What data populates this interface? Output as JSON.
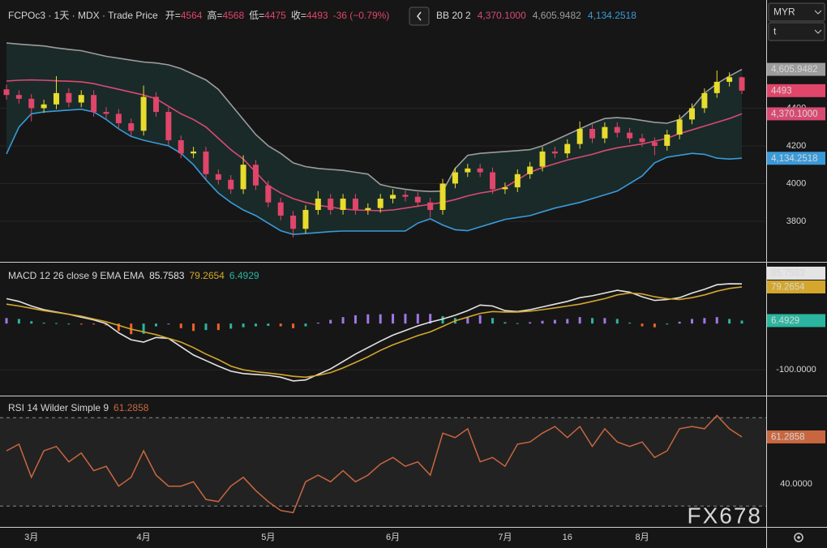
{
  "header": {
    "stats_labels": [
      "开=",
      "高=",
      "低=",
      "收="
    ],
    "change": "-36 (−0.79%)"
  },
  "selects": {
    "currency": "MYR",
    "interval": "t"
  },
  "watermark": "FX678",
  "chart_data": [
    {
      "type": "candlestick",
      "title": "FCPOc3 · 1天 · MDX · Trade Price",
      "categories": [
        null,
        null,
        "3月",
        null,
        null,
        null,
        null,
        null,
        null,
        null,
        null,
        "4月",
        null,
        null,
        null,
        null,
        null,
        null,
        null,
        null,
        null,
        "5月",
        null,
        null,
        null,
        null,
        null,
        null,
        null,
        null,
        null,
        "6月",
        null,
        null,
        null,
        null,
        null,
        null,
        null,
        null,
        "7月",
        null,
        null,
        null,
        null,
        "16",
        null,
        null,
        null,
        null,
        null,
        "8月",
        null,
        null,
        null,
        null,
        null,
        null,
        null,
        null
      ],
      "open": [
        4500,
        4470,
        4450,
        4400,
        4420,
        4480,
        4430,
        4470,
        4380,
        4370,
        4320,
        4280,
        4460,
        4380,
        4230,
        4160,
        4170,
        4050,
        4020,
        3970,
        4100,
        3990,
        3900,
        3830,
        3760,
        3860,
        3920,
        3860,
        3920,
        3860,
        3870,
        3920,
        3940,
        3930,
        3900,
        3860,
        4000,
        4060,
        4080,
        4060,
        3970,
        3980,
        4050,
        4090,
        4170,
        4160,
        4210,
        4290,
        4240,
        4300,
        4270,
        4240,
        4220,
        4200,
        4260,
        4340,
        4400,
        4480,
        4540,
        4564
      ],
      "high": [
        4525,
        4495,
        4475,
        4445,
        4570,
        4505,
        4495,
        4495,
        4405,
        4395,
        4345,
        4520,
        4485,
        4405,
        4255,
        4195,
        4195,
        4075,
        4045,
        4150,
        4125,
        4015,
        3925,
        3855,
        3885,
        3960,
        3945,
        3945,
        3945,
        3895,
        3945,
        3970,
        3965,
        3955,
        3925,
        4025,
        4085,
        4105,
        4105,
        4085,
        4005,
        4075,
        4115,
        4195,
        4195,
        4235,
        4330,
        4315,
        4325,
        4325,
        4295,
        4265,
        4245,
        4285,
        4365,
        4425,
        4505,
        4600,
        4590,
        4568
      ],
      "low": [
        4445,
        4425,
        4330,
        4375,
        4395,
        4405,
        4405,
        4355,
        4345,
        4295,
        4255,
        4255,
        4355,
        4205,
        4135,
        4135,
        4025,
        3995,
        3945,
        3945,
        3965,
        3875,
        3805,
        3714,
        3735,
        3835,
        3835,
        3835,
        3835,
        3835,
        3845,
        3895,
        3905,
        3875,
        3820,
        3835,
        3975,
        4035,
        4035,
        3945,
        3945,
        3955,
        4025,
        4065,
        4135,
        4135,
        4185,
        4215,
        4215,
        4245,
        4215,
        4195,
        4150,
        4175,
        4235,
        4315,
        4375,
        4455,
        4515,
        4475
      ],
      "close": [
        4470,
        4450,
        4400,
        4420,
        4480,
        4430,
        4470,
        4380,
        4370,
        4320,
        4280,
        4460,
        4380,
        4230,
        4160,
        4170,
        4050,
        4020,
        3970,
        4100,
        3990,
        3900,
        3830,
        3760,
        3860,
        3920,
        3860,
        3920,
        3860,
        3870,
        3920,
        3940,
        3930,
        3900,
        3860,
        4000,
        4060,
        4080,
        4060,
        3970,
        3980,
        4050,
        4090,
        4170,
        4160,
        4210,
        4290,
        4240,
        4300,
        4270,
        4240,
        4220,
        4200,
        4260,
        4340,
        4400,
        4480,
        4540,
        4564,
        4493
      ],
      "up_color": "#e8dc2c",
      "down_color": "#e0456a",
      "ylim": [
        3589,
        4974
      ],
      "yticks": [
        3800,
        4000,
        4200,
        4400
      ],
      "grid": true,
      "overlay": {
        "name": "BB 20 2",
        "fill": "#1a2a29",
        "series": [
          {
            "color": "#d84a72",
            "last_label": "4,370.1000",
            "values": [
              4544,
              4548,
              4550,
              4548,
              4545,
              4543,
              4540,
              4530,
              4515,
              4500,
              4485,
              4470,
              4450,
              4410,
              4370,
              4340,
              4300,
              4240,
              4180,
              4130,
              4060,
              3990,
              3950,
              3920,
              3900,
              3885,
              3875,
              3865,
              3860,
              3858,
              3856,
              3860,
              3870,
              3880,
              3890,
              3900,
              3915,
              3935,
              3950,
              3960,
              3980,
              4020,
              4060,
              4085,
              4105,
              4125,
              4140,
              4155,
              4175,
              4190,
              4200,
              4210,
              4225,
              4240,
              4265,
              4285,
              4305,
              4325,
              4345,
              4370.1
            ]
          },
          {
            "color": "#9c9c9c",
            "last_label": "4,605.9482",
            "values": [
              4746,
              4740,
              4735,
              4730,
              4720,
              4712,
              4705,
              4690,
              4675,
              4665,
              4655,
              4645,
              4640,
              4630,
              4610,
              4580,
              4550,
              4500,
              4420,
              4340,
              4260,
              4200,
              4160,
              4110,
              4090,
              4080,
              4075,
              4070,
              4060,
              4050,
              3995,
              3980,
              3970,
              3962,
              3958,
              3960,
              4080,
              4150,
              4160,
              4165,
              4170,
              4175,
              4180,
              4200,
              4230,
              4260,
              4290,
              4320,
              4345,
              4350,
              4345,
              4335,
              4325,
              4320,
              4340,
              4400,
              4480,
              4530,
              4570,
              4605.9482
            ]
          },
          {
            "color": "#3a9ad8",
            "last_label": "4,134.2518",
            "values": [
              4157,
              4300,
              4370,
              4380,
              4385,
              4390,
              4394,
              4380,
              4340,
              4290,
              4250,
              4230,
              4215,
              4200,
              4160,
              4100,
              4020,
              3950,
              3900,
              3860,
              3830,
              3790,
              3750,
              3730,
              3735,
              3740,
              3745,
              3748,
              3748,
              3748,
              3748,
              3748,
              3748,
              3790,
              3813,
              3780,
              3755,
              3750,
              3770,
              3790,
              3810,
              3820,
              3830,
              3850,
              3870,
              3885,
              3900,
              3920,
              3940,
              3960,
              4000,
              4040,
              4110,
              4140,
              4150,
              4160,
              4155,
              4135,
              4130,
              4134.2518
            ]
          }
        ]
      }
    },
    {
      "type": "macd",
      "title": "MACD 12 26 close 9 EMA EMA",
      "ylim": [
        -154,
        130
      ],
      "yticks": [
        {
          "value": -100,
          "label": "-100.0000"
        }
      ],
      "grid": true,
      "series": [
        {
          "kind": "histogram",
          "color": "#2bb5a0",
          "rise_color": "#a277e6",
          "fall_color": "#f0602a",
          "values": [
            12,
            10,
            5,
            2,
            1,
            0,
            -2,
            -2,
            -4,
            -16,
            -23,
            -22,
            -6,
            0,
            -10,
            -16,
            -14,
            -14,
            -11,
            -8,
            -6,
            -5,
            -6,
            -10,
            -6,
            2,
            8,
            14,
            18,
            20,
            20,
            21,
            21,
            21,
            21,
            16,
            12,
            14,
            18,
            12,
            3,
            1,
            3,
            6,
            8,
            10,
            14,
            12,
            12,
            10,
            2,
            -6,
            -8,
            -2,
            4,
            10,
            12,
            14,
            10,
            6.4929
          ]
        },
        {
          "kind": "line",
          "color": "#e4e4e4",
          "values": [
            54,
            48,
            38,
            30,
            25,
            20,
            14,
            8,
            0,
            -20,
            -35,
            -40,
            -30,
            -32,
            -50,
            -68,
            -80,
            -92,
            -103,
            -108,
            -110,
            -112,
            -116,
            -124,
            -122,
            -110,
            -98,
            -82,
            -66,
            -52,
            -38,
            -25,
            -15,
            -5,
            3,
            10,
            18,
            28,
            40,
            38,
            28,
            26,
            30,
            36,
            42,
            48,
            56,
            60,
            66,
            72,
            68,
            58,
            50,
            52,
            56,
            66,
            74,
            84,
            86,
            85.7583
          ]
        },
        {
          "kind": "line",
          "color": "#d4a72c",
          "values": [
            42,
            38,
            33,
            28,
            24,
            20,
            16,
            10,
            4,
            -4,
            -12,
            -18,
            -24,
            -32,
            -40,
            -52,
            -66,
            -78,
            -92,
            -100,
            -104,
            -107,
            -110,
            -114,
            -116,
            -112,
            -106,
            -96,
            -84,
            -72,
            -58,
            -46,
            -36,
            -26,
            -18,
            -6,
            6,
            14,
            22,
            26,
            25,
            25,
            27,
            30,
            34,
            38,
            42,
            48,
            54,
            62,
            66,
            64,
            58,
            54,
            52,
            56,
            62,
            70,
            76,
            79.2654
          ]
        }
      ]
    },
    {
      "type": "line",
      "title": "RSI 14 Wilder Simple 9",
      "ylim": [
        20.55,
        79.63
      ],
      "yticks": [
        {
          "value": 40,
          "label": "40.0000"
        }
      ],
      "grid": true,
      "levels": [
        70,
        30
      ],
      "band_fill": "#222222",
      "series": [
        {
          "kind": "line",
          "color": "#c8673f",
          "values": [
            55,
            58,
            43,
            55,
            57,
            50,
            54,
            46,
            48,
            39,
            43,
            55,
            44,
            39,
            39,
            41,
            33,
            32,
            39,
            43,
            37,
            32,
            28,
            27,
            41,
            44,
            41,
            46,
            41,
            44,
            49,
            52,
            48,
            50,
            44,
            63,
            61,
            65,
            50,
            52,
            48,
            58,
            59,
            63,
            66,
            61,
            66,
            57,
            65,
            59,
            57,
            59,
            52,
            55,
            65,
            66,
            65,
            71,
            65,
            61.2858
          ]
        }
      ]
    }
  ]
}
